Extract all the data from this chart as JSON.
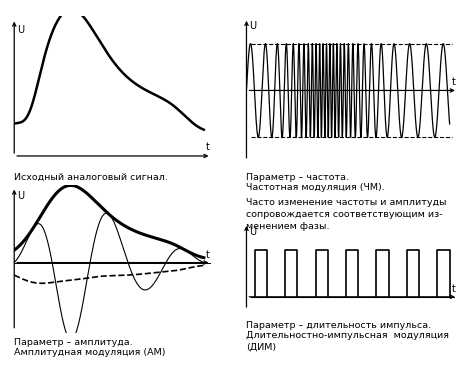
{
  "bg_color": "#ffffff",
  "panel_texts": {
    "top_left_label": "Исходный аналоговый сигнал.",
    "top_right_label1": "Параметр – частота.",
    "top_right_label2": "Частотная модуляция (ЧМ).",
    "mid_right_label": "Часто изменение частоты и амплитуды\nсопровождается соответствующим из-\nменением фазы.",
    "bot_left_label1": "Параметр – амплитуда.",
    "bot_left_label2": "Амплитудная модуляция (АМ)",
    "bot_right_label1": "Параметр – длительность импульса.",
    "bot_right_label2": "Длительностно-импульсная  модуляция\n(ДИМ)"
  },
  "axis_label_U": "U",
  "axis_label_t": "t"
}
